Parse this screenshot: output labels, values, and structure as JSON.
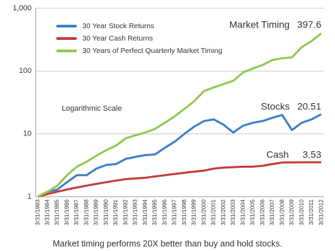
{
  "chart_data": {
    "type": "line",
    "log_scale": true,
    "grid": true,
    "legend": "top-left",
    "annotation": "Logarithmic Scale",
    "caption": "Market timing performs 20X better than buy and hold stocks.",
    "categories": [
      "3/31/1983",
      "3/31/1984",
      "3/31/1985",
      "3/31/1986",
      "3/31/1987",
      "3/31/1988",
      "3/31/1989",
      "3/31/1990",
      "3/31/1991",
      "3/31/1992",
      "3/31/1993",
      "3/31/1994",
      "3/31/1995",
      "3/31/1996",
      "3/31/1997",
      "3/31/1998",
      "3/31/1999",
      "3/31/2000",
      "3/31/2001",
      "3/31/2002",
      "3/31/2003",
      "3/31/2004",
      "3/31/2005",
      "3/31/2006",
      "3/31/2007",
      "3/31/2008",
      "3/31/2009",
      "3/31/2010",
      "3/31/2011",
      "3/31/2012"
    ],
    "ylim": [
      1,
      1000
    ],
    "yticks": [
      1,
      10,
      100,
      {
        "value": 1000,
        "label": "1,000"
      }
    ],
    "series": [
      {
        "name": "30 Year Stock Returns",
        "end_label": "Stocks",
        "color": "#3f7fc7",
        "values": [
          1,
          1.2,
          1.3,
          1.7,
          2.2,
          2.2,
          2.8,
          3.2,
          3.3,
          4,
          4.3,
          4.6,
          4.7,
          6,
          7.5,
          10,
          13,
          16,
          17,
          14,
          10.5,
          13.5,
          15,
          16,
          18,
          20,
          11.5,
          15,
          17,
          20.51
        ]
      },
      {
        "name": "30 Year Cash Returns",
        "end_label": "Cash",
        "color": "#c43c3c",
        "values": [
          1,
          1.1,
          1.2,
          1.3,
          1.4,
          1.5,
          1.6,
          1.7,
          1.8,
          1.9,
          1.95,
          2,
          2.1,
          2.2,
          2.3,
          2.4,
          2.5,
          2.6,
          2.8,
          2.9,
          2.95,
          3,
          3,
          3.1,
          3.3,
          3.5,
          3.52,
          3.53,
          3.53,
          3.53
        ]
      },
      {
        "name": "30 Years of Perfect Quarterly Market Timing",
        "end_label": "Market Timing",
        "color": "#92c84f",
        "values": [
          1,
          1.2,
          1.5,
          2.2,
          3,
          3.6,
          4.5,
          5.5,
          6.5,
          8.5,
          9.5,
          10.5,
          12,
          15,
          19,
          25,
          33,
          48,
          55,
          62,
          70,
          95,
          110,
          125,
          150,
          160,
          165,
          240,
          300,
          397.6
        ]
      }
    ]
  }
}
